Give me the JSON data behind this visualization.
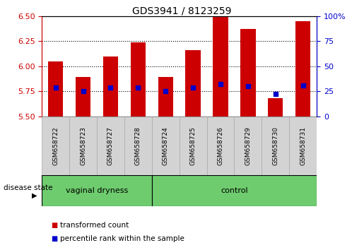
{
  "title": "GDS3941 / 8123259",
  "samples": [
    "GSM658722",
    "GSM658723",
    "GSM658727",
    "GSM658728",
    "GSM658724",
    "GSM658725",
    "GSM658726",
    "GSM658729",
    "GSM658730",
    "GSM658731"
  ],
  "bar_tops": [
    6.05,
    5.89,
    6.1,
    6.24,
    5.89,
    6.16,
    6.49,
    6.37,
    5.68,
    6.45
  ],
  "bar_bottoms": [
    5.5,
    5.5,
    5.5,
    5.5,
    5.5,
    5.5,
    5.5,
    5.5,
    5.5,
    5.5
  ],
  "percentile_values": [
    5.79,
    5.75,
    5.79,
    5.79,
    5.75,
    5.79,
    5.82,
    5.8,
    5.72,
    5.81
  ],
  "groups": [
    {
      "label": "vaginal dryness",
      "start": 0,
      "end": 4
    },
    {
      "label": "control",
      "start": 4,
      "end": 10
    }
  ],
  "ylim": [
    5.5,
    6.5
  ],
  "y2lim": [
    0,
    100
  ],
  "yticks": [
    5.5,
    5.75,
    6.0,
    6.25,
    6.5
  ],
  "y2ticks": [
    0,
    25,
    50,
    75,
    100
  ],
  "bar_color": "#CC0000",
  "percentile_color": "#0000CC",
  "bar_width": 0.55,
  "left_tick_color": "#CC0000",
  "right_tick_color": "#0000CC",
  "disease_state_label": "disease state",
  "legend_items": [
    {
      "label": "transformed count",
      "color": "#CC0000"
    },
    {
      "label": "percentile rank within the sample",
      "color": "#0000CC"
    }
  ]
}
